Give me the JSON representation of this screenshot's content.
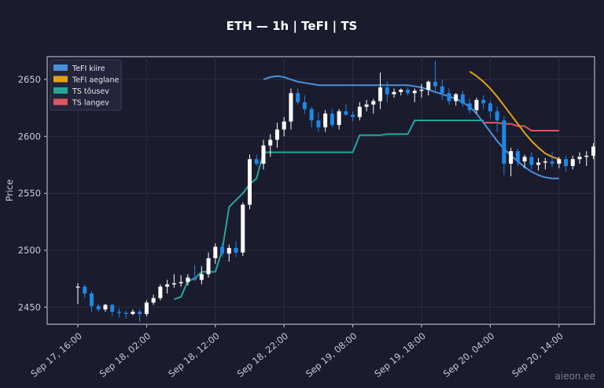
{
  "title": "ETH — 1h  |  TeFI  |  TS",
  "watermark": "aieon.ee",
  "chart_data": {
    "type": "candlestick",
    "ylabel": "Price",
    "ylim": [
      2435,
      2670
    ],
    "yticks": [
      2450,
      2500,
      2550,
      2600,
      2650
    ],
    "grid": true,
    "legend_position": "top-left",
    "x_start": "2024-09-17T16:00",
    "x_step_hours": 1,
    "xticks": [
      "Sep 17, 16:00",
      "Sep 18, 02:00",
      "Sep 18, 12:00",
      "Sep 18, 22:00",
      "Sep 19, 08:00",
      "Sep 19, 18:00",
      "Sep 20, 04:00",
      "Sep 20, 14:00"
    ],
    "xtick_hours": [
      0,
      10,
      20,
      30,
      40,
      50,
      60,
      70
    ],
    "colors": {
      "up": "#ffffff",
      "down": "#1e88e5",
      "tefi_fast": "#4a90d9",
      "tefi_slow": "#e0a21a",
      "ts_up": "#26a69a",
      "ts_down": "#e05560"
    },
    "legend": [
      {
        "label": "TeFI kiire",
        "color": "#4a90d9"
      },
      {
        "label": "TeFI aeglane",
        "color": "#e0a21a"
      },
      {
        "label": "TS tõusev",
        "color": "#26a69a"
      },
      {
        "label": "TS langev",
        "color": "#e05560"
      }
    ],
    "ohlc": [
      [
        2468,
        2471,
        2453,
        2468
      ],
      [
        2468,
        2470,
        2458,
        2462
      ],
      [
        2462,
        2464,
        2446,
        2451
      ],
      [
        2451,
        2453,
        2446,
        2448
      ],
      [
        2448,
        2453,
        2446,
        2452
      ],
      [
        2452,
        2453,
        2442,
        2446
      ],
      [
        2446,
        2449,
        2441,
        2445
      ],
      [
        2445,
        2447,
        2440,
        2444
      ],
      [
        2444,
        2448,
        2443,
        2446
      ],
      [
        2446,
        2448,
        2437,
        2444
      ],
      [
        2444,
        2456,
        2442,
        2454
      ],
      [
        2454,
        2461,
        2452,
        2458
      ],
      [
        2458,
        2470,
        2456,
        2468
      ],
      [
        2468,
        2474,
        2462,
        2470
      ],
      [
        2470,
        2479,
        2467,
        2471
      ],
      [
        2471,
        2478,
        2468,
        2472
      ],
      [
        2472,
        2479,
        2469,
        2476
      ],
      [
        2476,
        2487,
        2473,
        2474
      ],
      [
        2474,
        2486,
        2470,
        2479
      ],
      [
        2479,
        2498,
        2476,
        2493
      ],
      [
        2493,
        2506,
        2488,
        2503
      ],
      [
        2503,
        2506,
        2494,
        2497
      ],
      [
        2497,
        2505,
        2490,
        2502
      ],
      [
        2502,
        2508,
        2494,
        2498
      ],
      [
        2498,
        2542,
        2495,
        2540
      ],
      [
        2540,
        2584,
        2536,
        2580
      ],
      [
        2580,
        2584,
        2574,
        2576
      ],
      [
        2576,
        2597,
        2571,
        2592
      ],
      [
        2592,
        2602,
        2582,
        2597
      ],
      [
        2597,
        2612,
        2590,
        2606
      ],
      [
        2606,
        2617,
        2600,
        2613
      ],
      [
        2613,
        2642,
        2606,
        2638
      ],
      [
        2638,
        2642,
        2628,
        2630
      ],
      [
        2630,
        2636,
        2620,
        2624
      ],
      [
        2624,
        2626,
        2608,
        2614
      ],
      [
        2614,
        2621,
        2604,
        2608
      ],
      [
        2608,
        2623,
        2604,
        2620
      ],
      [
        2620,
        2624,
        2608,
        2610
      ],
      [
        2610,
        2624,
        2606,
        2622
      ],
      [
        2622,
        2628,
        2618,
        2619
      ],
      [
        2619,
        2622,
        2613,
        2617
      ],
      [
        2617,
        2630,
        2614,
        2626
      ],
      [
        2626,
        2632,
        2622,
        2628
      ],
      [
        2628,
        2633,
        2620,
        2631
      ],
      [
        2631,
        2656,
        2624,
        2643
      ],
      [
        2643,
        2648,
        2630,
        2637
      ],
      [
        2637,
        2642,
        2634,
        2639
      ],
      [
        2639,
        2642,
        2636,
        2641
      ],
      [
        2641,
        2643,
        2636,
        2638
      ],
      [
        2638,
        2642,
        2630,
        2640
      ],
      [
        2640,
        2646,
        2634,
        2641
      ],
      [
        2641,
        2649,
        2636,
        2648
      ],
      [
        2648,
        2666,
        2640,
        2644
      ],
      [
        2644,
        2650,
        2632,
        2638
      ],
      [
        2638,
        2642,
        2628,
        2631
      ],
      [
        2631,
        2638,
        2627,
        2637
      ],
      [
        2637,
        2640,
        2626,
        2629
      ],
      [
        2629,
        2633,
        2620,
        2623
      ],
      [
        2623,
        2634,
        2620,
        2632
      ],
      [
        2632,
        2636,
        2624,
        2629
      ],
      [
        2629,
        2631,
        2616,
        2622
      ],
      [
        2622,
        2626,
        2604,
        2614
      ],
      [
        2614,
        2618,
        2566,
        2576
      ],
      [
        2576,
        2590,
        2565,
        2587
      ],
      [
        2587,
        2589,
        2574,
        2578
      ],
      [
        2578,
        2584,
        2572,
        2582
      ],
      [
        2582,
        2586,
        2571,
        2575
      ],
      [
        2575,
        2581,
        2570,
        2577
      ],
      [
        2577,
        2581,
        2571,
        2578
      ],
      [
        2578,
        2586,
        2573,
        2576
      ],
      [
        2576,
        2582,
        2572,
        2580
      ],
      [
        2580,
        2583,
        2569,
        2574
      ],
      [
        2574,
        2583,
        2571,
        2580
      ],
      [
        2580,
        2586,
        2576,
        2582
      ],
      [
        2582,
        2587,
        2574,
        2583
      ],
      [
        2583,
        2594,
        2580,
        2591
      ]
    ],
    "tefi_fast": [
      [
        27,
        2650
      ],
      [
        28,
        2652
      ],
      [
        29,
        2653
      ],
      [
        30,
        2652
      ],
      [
        31,
        2650
      ],
      [
        32,
        2648
      ],
      [
        33,
        2647
      ],
      [
        34,
        2646
      ],
      [
        35,
        2645
      ],
      [
        36,
        2645
      ],
      [
        37,
        2645
      ],
      [
        38,
        2645
      ],
      [
        39,
        2645
      ],
      [
        40,
        2645
      ],
      [
        41,
        2645
      ],
      [
        42,
        2645
      ],
      [
        43,
        2645
      ],
      [
        44,
        2645
      ],
      [
        45,
        2645
      ],
      [
        46,
        2645
      ],
      [
        47,
        2645
      ],
      [
        48,
        2645
      ],
      [
        49,
        2644
      ],
      [
        50,
        2643
      ],
      [
        51,
        2641
      ],
      [
        52,
        2639
      ],
      [
        53,
        2637
      ],
      [
        54,
        2635
      ],
      [
        55,
        2633
      ],
      [
        56,
        2630
      ],
      [
        57,
        2626
      ],
      [
        58,
        2620
      ],
      [
        59,
        2612
      ],
      [
        60,
        2604
      ],
      [
        61,
        2596
      ],
      [
        62,
        2589
      ],
      [
        63,
        2583
      ],
      [
        64,
        2578
      ],
      [
        65,
        2573
      ],
      [
        66,
        2569
      ],
      [
        67,
        2566
      ],
      [
        68,
        2564
      ],
      [
        69,
        2563
      ],
      [
        70,
        2563
      ]
    ],
    "tefi_slow": [
      [
        57,
        2657
      ],
      [
        58,
        2653
      ],
      [
        59,
        2648
      ],
      [
        60,
        2642
      ],
      [
        61,
        2635
      ],
      [
        62,
        2627
      ],
      [
        63,
        2619
      ],
      [
        64,
        2611
      ],
      [
        65,
        2603
      ],
      [
        66,
        2596
      ],
      [
        67,
        2590
      ],
      [
        68,
        2585
      ],
      [
        69,
        2582
      ],
      [
        70,
        2580
      ]
    ],
    "ts_up": [
      [
        14,
        2457
      ],
      [
        15,
        2459
      ],
      [
        16,
        2473
      ],
      [
        17,
        2475
      ],
      [
        18,
        2481
      ],
      [
        19,
        2481
      ],
      [
        20,
        2481
      ],
      [
        21,
        2500
      ],
      [
        22,
        2538
      ],
      [
        23,
        2544
      ],
      [
        24,
        2550
      ],
      [
        25,
        2558
      ],
      [
        26,
        2563
      ],
      [
        27,
        2586
      ],
      [
        28,
        2586
      ],
      [
        29,
        2586
      ],
      [
        30,
        2586
      ],
      [
        31,
        2586
      ],
      [
        32,
        2586
      ],
      [
        33,
        2586
      ],
      [
        34,
        2586
      ],
      [
        35,
        2586
      ],
      [
        36,
        2586
      ],
      [
        37,
        2586
      ],
      [
        38,
        2586
      ],
      [
        39,
        2586
      ],
      [
        40,
        2586
      ],
      [
        41,
        2601
      ],
      [
        42,
        2601
      ],
      [
        43,
        2601
      ],
      [
        44,
        2601
      ],
      [
        45,
        2602
      ],
      [
        46,
        2602
      ],
      [
        47,
        2602
      ],
      [
        48,
        2602
      ],
      [
        49,
        2614
      ],
      [
        50,
        2614
      ],
      [
        51,
        2614
      ],
      [
        52,
        2614
      ],
      [
        53,
        2614
      ],
      [
        54,
        2614
      ],
      [
        55,
        2614
      ],
      [
        56,
        2614
      ],
      [
        57,
        2614
      ],
      [
        58,
        2614
      ],
      [
        59,
        2614
      ]
    ],
    "ts_down": [
      [
        59,
        2612
      ],
      [
        60,
        2612
      ],
      [
        61,
        2612
      ],
      [
        62,
        2611
      ],
      [
        63,
        2611
      ],
      [
        64,
        2609
      ],
      [
        65,
        2609
      ],
      [
        66,
        2605
      ],
      [
        67,
        2605
      ],
      [
        68,
        2605
      ],
      [
        69,
        2605
      ],
      [
        70,
        2605
      ]
    ]
  }
}
